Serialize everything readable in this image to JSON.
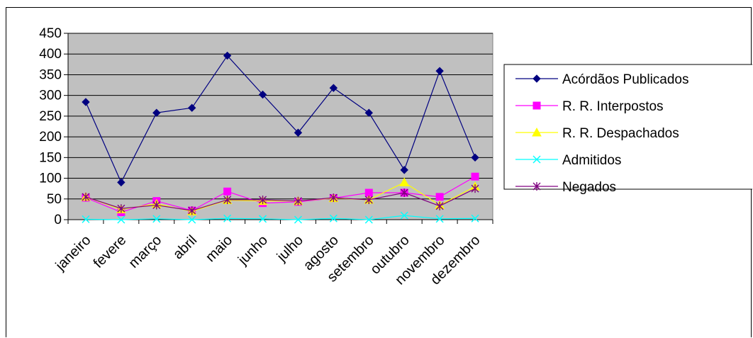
{
  "chart_data": {
    "type": "line",
    "title": "",
    "xlabel": "",
    "ylabel": "",
    "ylim": [
      0,
      450
    ],
    "yticks": [
      "0",
      "50",
      "100",
      "150",
      "200",
      "250",
      "300",
      "350",
      "400",
      "450"
    ],
    "categories": [
      "janeiro",
      "fevere",
      "março",
      "abril",
      "maio",
      "junho",
      "julho",
      "agosto",
      "setembro",
      "outubro",
      "novembro",
      "dezembro"
    ],
    "grid": true,
    "legend_position": "right",
    "plot_background": "#c0c0c0",
    "series": [
      {
        "name": "Acórdãos Publicados",
        "color": "#000080",
        "marker": "diamond",
        "values": [
          284,
          90,
          258,
          270,
          396,
          302,
          210,
          318,
          258,
          120,
          359,
          150
        ]
      },
      {
        "name": "R. R. Interpostos",
        "color": "#ff00ff",
        "marker": "square",
        "values": [
          53,
          18,
          45,
          22,
          68,
          40,
          43,
          52,
          65,
          65,
          55,
          104
        ]
      },
      {
        "name": "R. R. Despachados",
        "color": "#ffff00",
        "marker": "triangle",
        "values": [
          55,
          25,
          38,
          20,
          47,
          45,
          45,
          52,
          48,
          90,
          35,
          80
        ]
      },
      {
        "name": "Admitidos",
        "color": "#00ffff",
        "marker": "x",
        "values": [
          1,
          0,
          2,
          0,
          3,
          2,
          0,
          3,
          0,
          10,
          2,
          3
        ]
      },
      {
        "name": "Negados",
        "color": "#800080",
        "marker": "asterisk",
        "values": [
          55,
          27,
          35,
          22,
          48,
          48,
          45,
          53,
          48,
          65,
          33,
          75
        ]
      }
    ]
  }
}
